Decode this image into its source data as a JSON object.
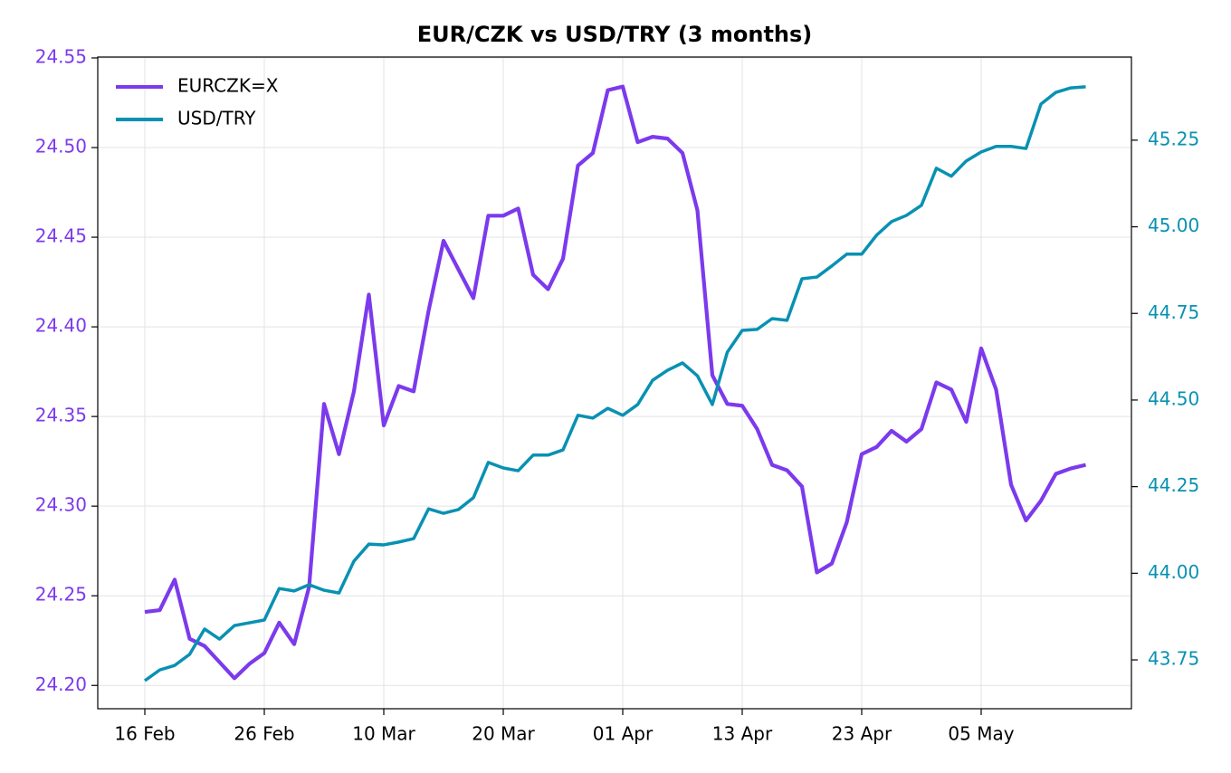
{
  "chart_data": {
    "type": "line",
    "title": "EUR/CZK vs USD/TRY (3 months)",
    "categories": [
      "16 Feb",
      null,
      null,
      null,
      null,
      null,
      null,
      null,
      "26 Feb",
      null,
      null,
      null,
      null,
      null,
      null,
      null,
      "10 Mar",
      null,
      null,
      null,
      null,
      null,
      null,
      null,
      "20 Mar",
      null,
      null,
      null,
      null,
      null,
      null,
      null,
      "01 Apr",
      null,
      null,
      null,
      null,
      null,
      null,
      null,
      "13 Apr",
      null,
      null,
      null,
      null,
      null,
      null,
      null,
      "23 Apr",
      null,
      null,
      null,
      null,
      null,
      null,
      null,
      "05 May",
      null,
      null,
      null,
      null,
      null,
      null,
      null
    ],
    "series": [
      {
        "name": "EURCZK=X",
        "color": "#7c3aed",
        "axis": "y",
        "values": [
          24.241,
          24.242,
          24.259,
          24.226,
          24.222,
          24.213,
          24.204,
          24.212,
          24.218,
          24.235,
          24.223,
          24.255,
          24.357,
          24.329,
          24.364,
          24.418,
          24.345,
          24.367,
          24.364,
          24.409,
          24.448,
          24.432,
          24.416,
          24.462,
          24.462,
          24.466,
          24.429,
          24.421,
          24.438,
          24.49,
          24.497,
          24.532,
          24.534,
          24.503,
          24.506,
          24.505,
          24.497,
          24.465,
          24.373,
          24.357,
          24.356,
          24.343,
          24.323,
          24.32,
          24.311,
          24.263,
          24.268,
          24.291,
          24.329,
          24.333,
          24.342,
          24.336,
          24.343,
          24.369,
          24.365,
          24.347,
          24.388,
          24.365,
          24.312,
          24.292,
          24.303,
          24.318,
          24.321,
          24.323
        ]
      },
      {
        "name": "USD/TRY",
        "color": "#0891b2",
        "axis": "y2",
        "values": [
          43.69,
          43.721,
          43.734,
          43.766,
          43.839,
          43.81,
          43.849,
          43.857,
          43.865,
          43.956,
          43.949,
          43.967,
          43.951,
          43.943,
          44.035,
          44.084,
          44.082,
          44.09,
          44.1,
          44.186,
          44.173,
          44.184,
          44.218,
          44.32,
          44.304,
          44.296,
          44.341,
          44.341,
          44.356,
          44.456,
          44.448,
          44.476,
          44.456,
          44.487,
          44.557,
          44.586,
          44.607,
          44.57,
          44.487,
          44.638,
          44.701,
          44.704,
          44.735,
          44.73,
          44.85,
          44.855,
          44.887,
          44.921,
          44.921,
          44.976,
          45.015,
          45.033,
          45.062,
          45.169,
          45.146,
          45.19,
          45.216,
          45.232,
          45.232,
          45.226,
          45.354,
          45.388,
          45.401,
          45.404
        ]
      }
    ],
    "ylim": [
      24.187,
      24.5505
    ],
    "yticks": [
      {
        "value": 24.2,
        "label": "24.20"
      },
      24.25,
      {
        "value": 24.3,
        "label": "24.30"
      },
      24.35,
      {
        "value": 24.4,
        "label": "24.40"
      },
      24.45,
      {
        "value": 24.5,
        "label": "24.50"
      },
      24.55
    ],
    "y2lim": [
      43.609,
      45.49
    ],
    "y2ticks": [
      43.75,
      {
        "value": 44,
        "label": "44.00"
      },
      44.25,
      {
        "value": 44.5,
        "label": "44.50"
      },
      44.75,
      {
        "value": 45,
        "label": "45.00"
      },
      45.25
    ],
    "grid": true,
    "legend": "upper-left"
  }
}
